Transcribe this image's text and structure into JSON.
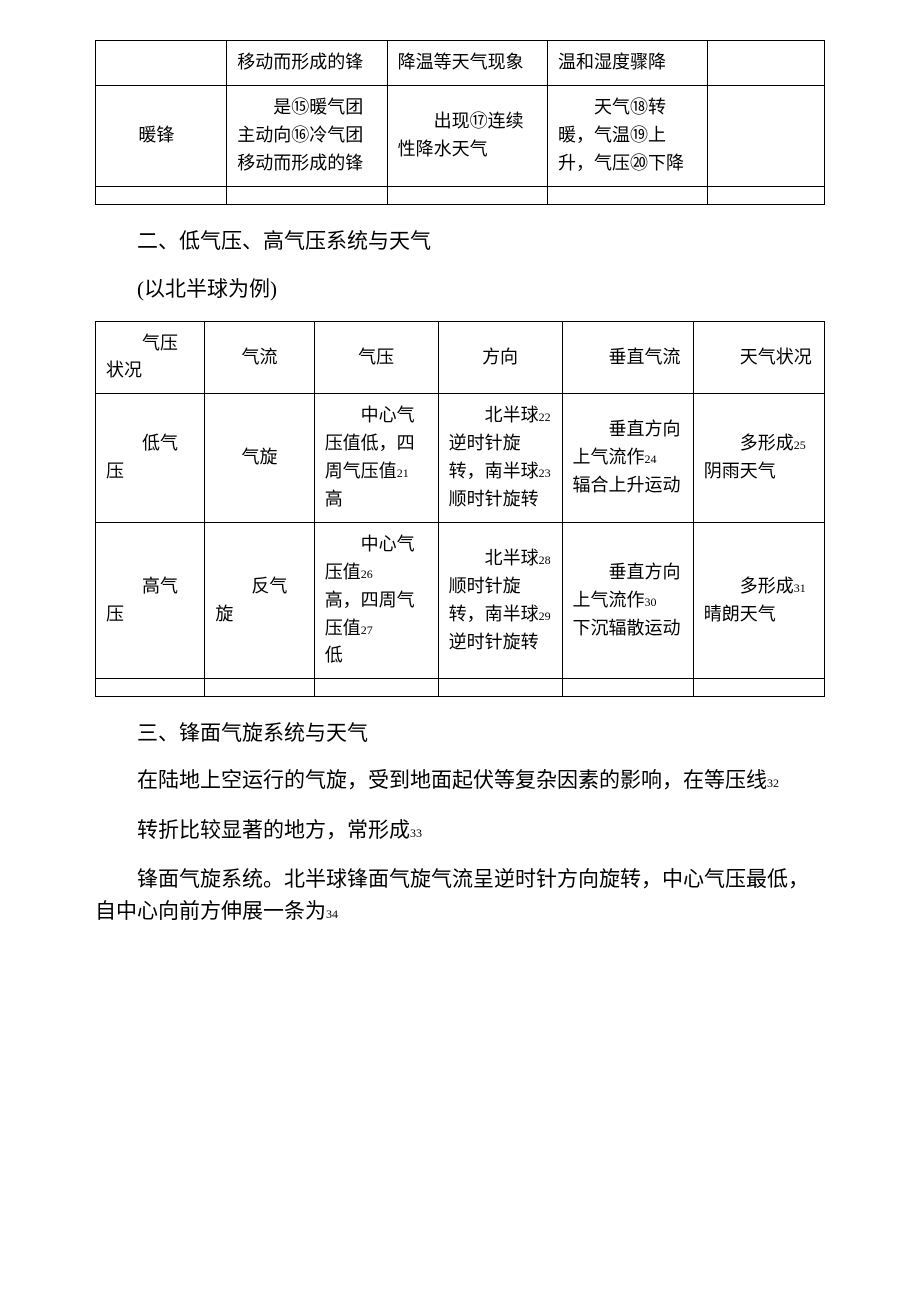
{
  "table1": {
    "row1": {
      "c2": "移动而形成的锋",
      "c3": "降温等天气现象",
      "c4": "温和湿度骤降"
    },
    "row2": {
      "c1_indent": "暖锋",
      "c2": "　　是⑮暖气团主动向⑯冷气团移动而形成的锋",
      "c3": "　　出现⑰连续性降水天气",
      "c4": "　　天气⑱转暖，气温⑲上升，气压⑳下降"
    }
  },
  "section2": {
    "title": "二、低气压、高气压系统与天气",
    "subtitle": "(以北半球为例)"
  },
  "table2": {
    "header": {
      "c1": "　　气压状况",
      "c2": "气流",
      "c3": "气压",
      "c4": "方向",
      "c5": "　　垂直气流",
      "c6": "　　天气状况"
    },
    "row1": {
      "c1": "　　低气压",
      "c2": "气旋",
      "c3_pre": "　　中心气压值低，四周气压值",
      "c3_num": "21",
      "c3_post": "高",
      "c4_pre": "　　北半球",
      "c4_num1": "22",
      "c4_mid": "逆时针旋转，南半球",
      "c4_num2": "23",
      "c4_post": "顺时针旋转",
      "c5_pre": "　　垂直方向上气流作",
      "c5_num": "24",
      "c5_post": "辐合上升运动",
      "c6_pre": "　　多形成",
      "c6_num": "25",
      "c6_post": "阴雨天气"
    },
    "row2": {
      "c1": "　　高气压",
      "c2": "　　反气旋",
      "c3_pre": "　　中心气压值",
      "c3_num1": "26",
      "c3_mid": "高，四周气压值",
      "c3_num2": "27",
      "c3_post": "低",
      "c4_pre": "　　北半球",
      "c4_num1": "28",
      "c4_mid": "顺时针旋转，南半球",
      "c4_num2": "29",
      "c4_post": "逆时针旋转",
      "c5_pre": "　　垂直方向上气流作",
      "c5_num": "30",
      "c5_post": "下沉辐散运动",
      "c6_pre": "　　多形成",
      "c6_num": "31",
      "c6_post": "晴朗天气"
    }
  },
  "section3": {
    "title": "三、锋面气旋系统与天气",
    "para1_pre": "　　在陆地上空运行的气旋，受到地面起伏等复杂因素的影响，在等压线",
    "para1_num": "32",
    "para2_pre": "　　转折比较显著的地方，常形成",
    "para2_num": "33",
    "para3_pre": "　　锋面气旋系统。北半球锋面气旋气流呈逆时针方向旋转，中心气压最低，自中心向前方伸展一条为",
    "para3_num": "34"
  }
}
